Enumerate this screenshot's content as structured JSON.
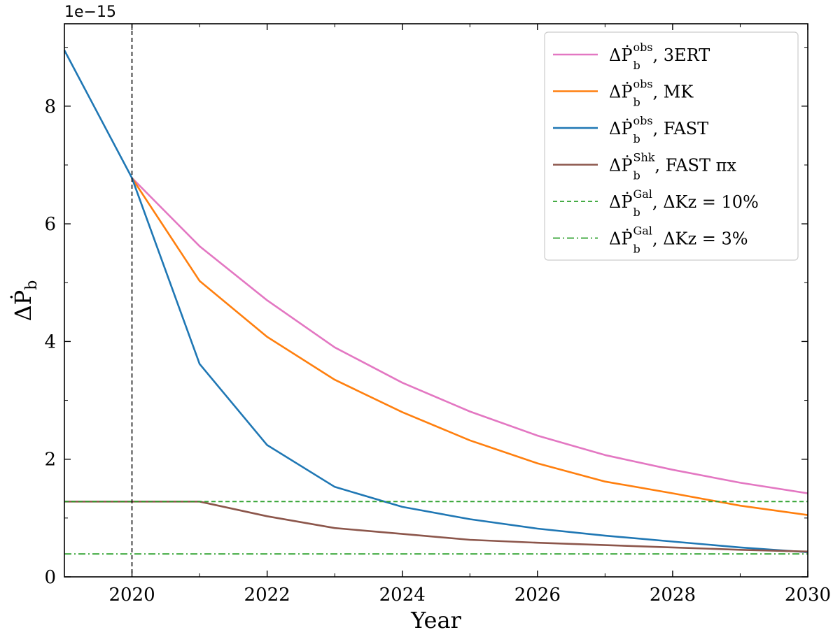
{
  "chart_data": {
    "type": "line",
    "title": "",
    "xlabel": "Year",
    "ylabel": "ΔṖb",
    "y_offset_label": "1e−15",
    "xlim": [
      2019,
      2030
    ],
    "ylim": [
      0,
      9.4
    ],
    "y_scale_factor": 1e-15,
    "x_ticks": [
      2020,
      2022,
      2024,
      2026,
      2028,
      2030
    ],
    "y_ticks": [
      0,
      2,
      4,
      6,
      8
    ],
    "legend_position": "top-right",
    "grid": false,
    "series": [
      {
        "name": "ΔṖb^obs, 3ERT",
        "legend_main": "ΔṖ",
        "legend_sub": "b",
        "legend_sup": "obs",
        "legend_rest": ", 3ERT",
        "color": "#e377c2",
        "style": "solid",
        "x": [
          2020,
          2021,
          2022,
          2023,
          2024,
          2025,
          2026,
          2027,
          2028,
          2029,
          2030
        ],
        "y": [
          6.78,
          5.62,
          4.7,
          3.9,
          3.3,
          2.81,
          2.4,
          2.07,
          1.82,
          1.6,
          1.42
        ]
      },
      {
        "name": "ΔṖb^obs, MK",
        "legend_main": "ΔṖ",
        "legend_sub": "b",
        "legend_sup": "obs",
        "legend_rest": ", MK",
        "color": "#ff7f0e",
        "style": "solid",
        "x": [
          2020,
          2021,
          2022,
          2023,
          2024,
          2025,
          2026,
          2027,
          2028,
          2029,
          2030
        ],
        "y": [
          6.78,
          5.03,
          4.08,
          3.35,
          2.8,
          2.32,
          1.93,
          1.62,
          1.42,
          1.21,
          1.05
        ]
      },
      {
        "name": "ΔṖb^obs, FAST",
        "legend_main": "ΔṖ",
        "legend_sub": "b",
        "legend_sup": "obs",
        "legend_rest": ", FAST",
        "color": "#1f77b4",
        "style": "solid",
        "x": [
          2019,
          2020,
          2021,
          2022,
          2023,
          2024,
          2025,
          2026,
          2027,
          2028,
          2029,
          2030
        ],
        "y": [
          8.95,
          6.78,
          3.62,
          2.24,
          1.53,
          1.19,
          0.98,
          0.82,
          0.7,
          0.6,
          0.5,
          0.42
        ]
      },
      {
        "name": "ΔṖb^Shk, FAST πx",
        "legend_main": "ΔṖ",
        "legend_sub": "b",
        "legend_sup": "Shk",
        "legend_rest": ", FAST πx",
        "color": "#8c564b",
        "style": "solid",
        "x": [
          2019,
          2020,
          2021,
          2022,
          2023,
          2024,
          2025,
          2026,
          2027,
          2028,
          2029,
          2030
        ],
        "y": [
          1.28,
          1.28,
          1.28,
          1.03,
          0.83,
          0.73,
          0.63,
          0.58,
          0.54,
          0.5,
          0.46,
          0.43
        ]
      },
      {
        "name": "ΔṖb^Gal, ΔKz = 10%",
        "legend_main": "ΔṖ",
        "legend_sub": "b",
        "legend_sup": "Gal",
        "legend_rest": ", ΔKz = 10%",
        "color": "#2ca02c",
        "style": "dashed",
        "x": [
          2019,
          2030
        ],
        "y": [
          1.28,
          1.28
        ]
      },
      {
        "name": "ΔṖb^Gal, ΔKz = 3%",
        "legend_main": "ΔṖ",
        "legend_sub": "b",
        "legend_sup": "Gal",
        "legend_rest": ", ΔKz = 3%",
        "color": "#2ca02c",
        "style": "dashdot",
        "x": [
          2019,
          2030
        ],
        "y": [
          0.39,
          0.39
        ]
      }
    ],
    "vline": {
      "x": 2020,
      "color": "#000000",
      "style": "dashed"
    }
  }
}
